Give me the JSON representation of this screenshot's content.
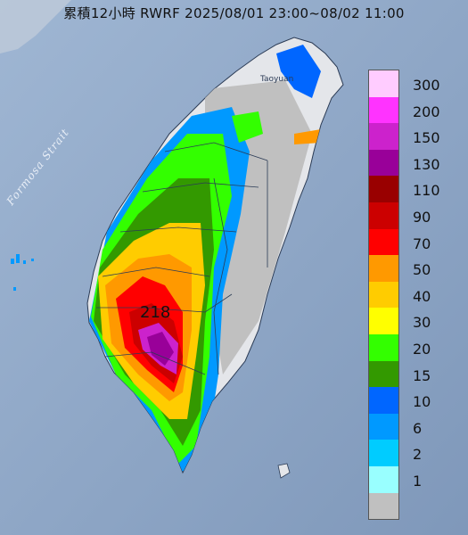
{
  "title": "累積12小時 RWRF 2025/08/01 23:00~08/02 11:00",
  "strait_label": "Formosa Strait",
  "city_label": "Taoyuan",
  "max_value": "218",
  "legend": {
    "items": [
      {
        "label": "300",
        "color": "#ffccff"
      },
      {
        "label": "200",
        "color": "#ff33ff"
      },
      {
        "label": "150",
        "color": "#cc22cc"
      },
      {
        "label": "130",
        "color": "#990099"
      },
      {
        "label": "110",
        "color": "#990000"
      },
      {
        "label": "90",
        "color": "#cc0000"
      },
      {
        "label": "70",
        "color": "#ff0000"
      },
      {
        "label": "50",
        "color": "#ff9900"
      },
      {
        "label": "40",
        "color": "#ffcc00"
      },
      {
        "label": "30",
        "color": "#ffff00"
      },
      {
        "label": "20",
        "color": "#33ff00"
      },
      {
        "label": "15",
        "color": "#339900"
      },
      {
        "label": "10",
        "color": "#0066ff"
      },
      {
        "label": "6",
        "color": "#0099ff"
      },
      {
        "label": "2",
        "color": "#00ccff"
      },
      {
        "label": "1",
        "color": "#99ffff"
      },
      {
        "label": "",
        "color": "#c0c0c0"
      }
    ]
  }
}
